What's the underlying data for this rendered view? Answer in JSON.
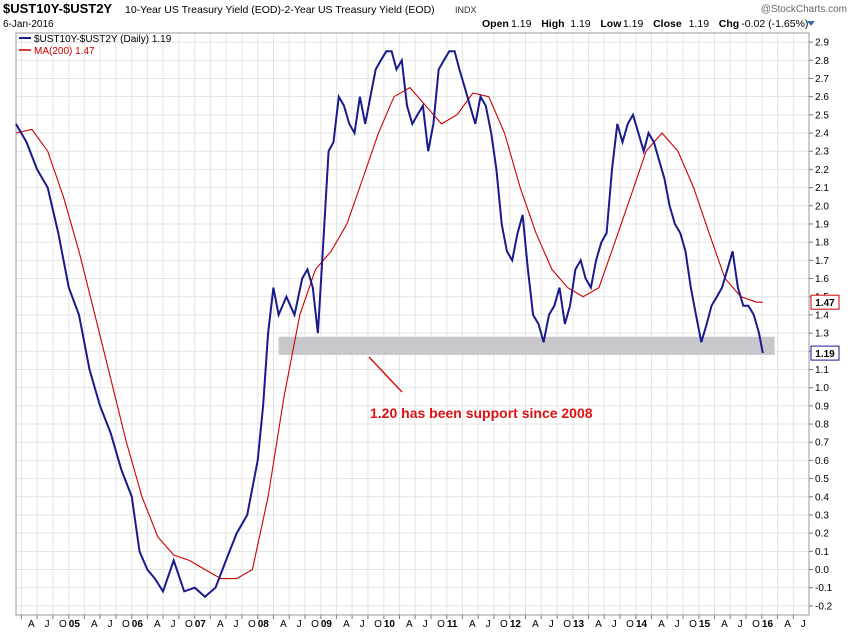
{
  "header": {
    "symbol": "$UST10Y-$UST2Y",
    "description": "10-Year US Treasury Yield (EOD)-2-Year US Treasury Yield (EOD)",
    "exchange": "INDX",
    "watermark": "@StockCharts.com",
    "date": "6-Jan-2016",
    "ohlc": [
      {
        "label": "Open",
        "value": "1.19"
      },
      {
        "label": "High",
        "value": "1.19"
      },
      {
        "label": "Low",
        "value": "1.19"
      },
      {
        "label": "Close",
        "value": "1.19"
      },
      {
        "label": "Chg",
        "value": "-0.02 (-1.65%)"
      }
    ],
    "dropdown_icon": "triangle-down-icon"
  },
  "legend": [
    {
      "text": "$UST10Y-$UST2Y (Daily) 1.19",
      "color": "#1a1a8c"
    },
    {
      "text": "MA(200) 1.47",
      "color": "#cc0000"
    }
  ],
  "annotation": {
    "text": "1.20 has been support since 2008",
    "color": "#dd1111"
  },
  "colors": {
    "price": "#1a1a8c",
    "ma": "#cc0000",
    "support_band": "#c8c8cc",
    "grid": "#e3e3e3",
    "annotation": "#dd1111"
  },
  "chart_data": {
    "type": "line",
    "x_range": [
      "2004-03-01",
      "2016-09-30"
    ],
    "y_range": [
      -0.25,
      2.95
    ],
    "y_ticks": [
      -0.2,
      -0.1,
      0.0,
      0.1,
      0.2,
      0.3,
      0.4,
      0.5,
      0.6,
      0.7,
      0.8,
      0.9,
      1.0,
      1.1,
      1.2,
      1.3,
      1.4,
      1.5,
      1.6,
      1.7,
      1.8,
      1.9,
      2.0,
      2.1,
      2.2,
      2.3,
      2.4,
      2.5,
      2.6,
      2.7,
      2.8,
      2.9
    ],
    "x_ticks": [
      {
        "date": "2004-04-01",
        "label": "A",
        "year": false
      },
      {
        "date": "2004-07-01",
        "label": "J",
        "year": false
      },
      {
        "date": "2004-10-01",
        "label": "O",
        "year": false
      },
      {
        "date": "2005-01-01",
        "label": "05",
        "year": true
      },
      {
        "date": "2005-04-01",
        "label": "A",
        "year": false
      },
      {
        "date": "2005-07-01",
        "label": "J",
        "year": false
      },
      {
        "date": "2005-10-01",
        "label": "O",
        "year": false
      },
      {
        "date": "2006-01-01",
        "label": "06",
        "year": true
      },
      {
        "date": "2006-04-01",
        "label": "A",
        "year": false
      },
      {
        "date": "2006-07-01",
        "label": "J",
        "year": false
      },
      {
        "date": "2006-10-01",
        "label": "O",
        "year": false
      },
      {
        "date": "2007-01-01",
        "label": "07",
        "year": true
      },
      {
        "date": "2007-04-01",
        "label": "A",
        "year": false
      },
      {
        "date": "2007-07-01",
        "label": "J",
        "year": false
      },
      {
        "date": "2007-10-01",
        "label": "O",
        "year": false
      },
      {
        "date": "2008-01-01",
        "label": "08",
        "year": true
      },
      {
        "date": "2008-04-01",
        "label": "A",
        "year": false
      },
      {
        "date": "2008-07-01",
        "label": "J",
        "year": false
      },
      {
        "date": "2008-10-01",
        "label": "O",
        "year": false
      },
      {
        "date": "2009-01-01",
        "label": "09",
        "year": true
      },
      {
        "date": "2009-04-01",
        "label": "A",
        "year": false
      },
      {
        "date": "2009-07-01",
        "label": "J",
        "year": false
      },
      {
        "date": "2009-10-01",
        "label": "O",
        "year": false
      },
      {
        "date": "2010-01-01",
        "label": "10",
        "year": true
      },
      {
        "date": "2010-04-01",
        "label": "A",
        "year": false
      },
      {
        "date": "2010-07-01",
        "label": "J",
        "year": false
      },
      {
        "date": "2010-10-01",
        "label": "O",
        "year": false
      },
      {
        "date": "2011-01-01",
        "label": "11",
        "year": true
      },
      {
        "date": "2011-04-01",
        "label": "A",
        "year": false
      },
      {
        "date": "2011-07-01",
        "label": "J",
        "year": false
      },
      {
        "date": "2011-10-01",
        "label": "O",
        "year": false
      },
      {
        "date": "2012-01-01",
        "label": "12",
        "year": true
      },
      {
        "date": "2012-04-01",
        "label": "A",
        "year": false
      },
      {
        "date": "2012-07-01",
        "label": "J",
        "year": false
      },
      {
        "date": "2012-10-01",
        "label": "O",
        "year": false
      },
      {
        "date": "2013-01-01",
        "label": "13",
        "year": true
      },
      {
        "date": "2013-04-01",
        "label": "A",
        "year": false
      },
      {
        "date": "2013-07-01",
        "label": "J",
        "year": false
      },
      {
        "date": "2013-10-01",
        "label": "O",
        "year": false
      },
      {
        "date": "2014-01-01",
        "label": "14",
        "year": true
      },
      {
        "date": "2014-04-01",
        "label": "A",
        "year": false
      },
      {
        "date": "2014-07-01",
        "label": "J",
        "year": false
      },
      {
        "date": "2014-10-01",
        "label": "O",
        "year": false
      },
      {
        "date": "2015-01-01",
        "label": "15",
        "year": true
      },
      {
        "date": "2015-04-01",
        "label": "A",
        "year": false
      },
      {
        "date": "2015-07-01",
        "label": "J",
        "year": false
      },
      {
        "date": "2015-10-01",
        "label": "O",
        "year": false
      },
      {
        "date": "2016-01-01",
        "label": "16",
        "year": true
      },
      {
        "date": "2016-04-01",
        "label": "A",
        "year": false
      },
      {
        "date": "2016-07-01",
        "label": "J",
        "year": false
      },
      {
        "date": "2016-10-01",
        "label": "O",
        "year": false
      }
    ],
    "series": [
      {
        "name": "$UST10Y-$UST2Y (Daily)",
        "x": [
          "2004-03-01",
          "2004-05-01",
          "2004-07-01",
          "2004-09-01",
          "2004-11-01",
          "2005-01-01",
          "2005-03-01",
          "2005-05-01",
          "2005-07-01",
          "2005-09-01",
          "2005-11-01",
          "2006-01-01",
          "2006-02-15",
          "2006-04-01",
          "2006-05-15",
          "2006-07-01",
          "2006-09-01",
          "2006-11-01",
          "2007-01-01",
          "2007-03-01",
          "2007-05-01",
          "2007-07-01",
          "2007-09-01",
          "2007-11-01",
          "2008-01-01",
          "2008-02-01",
          "2008-03-01",
          "2008-04-01",
          "2008-05-01",
          "2008-06-15",
          "2008-08-01",
          "2008-09-15",
          "2008-10-15",
          "2008-11-15",
          "2008-12-15",
          "2009-01-15",
          "2009-02-15",
          "2009-03-15",
          "2009-04-15",
          "2009-05-15",
          "2009-06-15",
          "2009-07-15",
          "2009-08-15",
          "2009-09-15",
          "2009-10-15",
          "2009-11-15",
          "2009-12-15",
          "2010-01-15",
          "2010-02-15",
          "2010-03-15",
          "2010-04-15",
          "2010-05-15",
          "2010-06-15",
          "2010-07-15",
          "2010-08-15",
          "2010-09-15",
          "2010-10-15",
          "2010-11-15",
          "2010-12-15",
          "2011-01-15",
          "2011-02-15",
          "2011-03-15",
          "2011-04-15",
          "2011-05-15",
          "2011-06-15",
          "2011-07-15",
          "2011-08-15",
          "2011-09-15",
          "2011-10-15",
          "2011-11-15",
          "2011-12-15",
          "2012-01-15",
          "2012-02-15",
          "2012-03-15",
          "2012-04-15",
          "2012-05-15",
          "2012-06-15",
          "2012-07-15",
          "2012-08-15",
          "2012-09-15",
          "2012-10-15",
          "2012-11-15",
          "2012-12-15",
          "2013-01-15",
          "2013-02-15",
          "2013-03-15",
          "2013-04-15",
          "2013-05-15",
          "2013-06-15",
          "2013-07-15",
          "2013-08-15",
          "2013-09-15",
          "2013-10-15",
          "2013-11-15",
          "2013-12-15",
          "2014-01-15",
          "2014-02-15",
          "2014-03-15",
          "2014-04-15",
          "2014-05-15",
          "2014-06-15",
          "2014-07-15",
          "2014-08-15",
          "2014-09-15",
          "2014-10-15",
          "2014-11-15",
          "2014-12-15",
          "2015-01-15",
          "2015-02-15",
          "2015-03-15",
          "2015-04-15",
          "2015-05-15",
          "2015-06-15",
          "2015-07-15",
          "2015-08-15",
          "2015-09-15",
          "2015-10-15",
          "2015-11-15",
          "2015-12-15",
          "2016-01-06"
        ],
        "y": [
          2.45,
          2.35,
          2.2,
          2.1,
          1.85,
          1.55,
          1.4,
          1.1,
          0.9,
          0.75,
          0.55,
          0.4,
          0.1,
          0.0,
          -0.05,
          -0.12,
          0.05,
          -0.12,
          -0.1,
          -0.15,
          -0.1,
          0.05,
          0.2,
          0.3,
          0.6,
          0.9,
          1.3,
          1.55,
          1.4,
          1.5,
          1.4,
          1.6,
          1.65,
          1.55,
          1.3,
          1.8,
          2.3,
          2.35,
          2.6,
          2.55,
          2.45,
          2.4,
          2.6,
          2.45,
          2.6,
          2.75,
          2.8,
          2.85,
          2.85,
          2.75,
          2.8,
          2.55,
          2.45,
          2.5,
          2.55,
          2.3,
          2.45,
          2.75,
          2.8,
          2.85,
          2.85,
          2.75,
          2.65,
          2.55,
          2.45,
          2.6,
          2.55,
          2.4,
          2.2,
          1.9,
          1.75,
          1.7,
          1.85,
          1.95,
          1.65,
          1.4,
          1.35,
          1.25,
          1.4,
          1.45,
          1.55,
          1.35,
          1.45,
          1.65,
          1.7,
          1.6,
          1.55,
          1.7,
          1.8,
          1.85,
          2.2,
          2.45,
          2.35,
          2.45,
          2.5,
          2.4,
          2.3,
          2.4,
          2.35,
          2.25,
          2.15,
          2.0,
          1.9,
          1.85,
          1.75,
          1.55,
          1.4,
          1.25,
          1.35,
          1.45,
          1.5,
          1.55,
          1.65,
          1.75,
          1.55,
          1.45,
          1.45,
          1.4,
          1.3,
          1.19
        ]
      },
      {
        "name": "MA(200)",
        "x": [
          "2004-03-01",
          "2004-06-01",
          "2004-09-01",
          "2004-12-01",
          "2005-03-01",
          "2005-06-01",
          "2005-09-01",
          "2005-12-01",
          "2006-03-01",
          "2006-06-01",
          "2006-09-01",
          "2006-12-01",
          "2007-03-01",
          "2007-06-01",
          "2007-09-01",
          "2007-12-01",
          "2008-03-01",
          "2008-06-01",
          "2008-09-01",
          "2008-12-01",
          "2009-03-01",
          "2009-06-01",
          "2009-09-01",
          "2009-12-01",
          "2010-03-01",
          "2010-06-01",
          "2010-09-01",
          "2010-12-01",
          "2011-03-01",
          "2011-06-01",
          "2011-09-01",
          "2011-12-01",
          "2012-03-01",
          "2012-06-01",
          "2012-09-01",
          "2012-12-01",
          "2013-03-01",
          "2013-06-01",
          "2013-09-01",
          "2013-12-01",
          "2014-03-01",
          "2014-06-01",
          "2014-09-01",
          "2014-12-01",
          "2015-03-01",
          "2015-06-01",
          "2015-09-01",
          "2015-12-01",
          "2016-01-06"
        ],
        "y": [
          2.4,
          2.42,
          2.3,
          2.05,
          1.75,
          1.4,
          1.05,
          0.7,
          0.4,
          0.18,
          0.08,
          0.05,
          0.0,
          -0.05,
          -0.05,
          0.0,
          0.4,
          0.95,
          1.4,
          1.65,
          1.75,
          1.9,
          2.15,
          2.4,
          2.6,
          2.65,
          2.55,
          2.45,
          2.5,
          2.62,
          2.6,
          2.4,
          2.1,
          1.85,
          1.65,
          1.55,
          1.5,
          1.55,
          1.8,
          2.05,
          2.3,
          2.4,
          2.3,
          2.1,
          1.85,
          1.6,
          1.5,
          1.47,
          1.47
        ]
      }
    ],
    "support_band": {
      "y_low": 1.18,
      "y_high": 1.28,
      "x_start": "2008-05-01",
      "x_end": "2016-03-15"
    },
    "last_labels": [
      {
        "value": 1.47,
        "text": "1.47"
      },
      {
        "value": 1.19,
        "text": "1.19"
      }
    ],
    "grid": true,
    "legend_position": "top-left"
  }
}
